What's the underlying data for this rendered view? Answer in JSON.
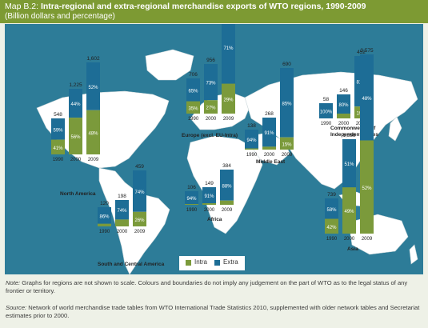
{
  "figure": {
    "map_label": "Map B.2:",
    "title": "Intra-regional and extra-regional merchandise exports of WTO regions, 1990-2009",
    "subtitle": "(Billion dollars and percentage)"
  },
  "legend": {
    "intra": "Intra",
    "extra": "Extra"
  },
  "colors": {
    "header": "#7d9a33",
    "ocean": "#2d7c98",
    "land": "#ffffff",
    "intra": "#7b9a3b",
    "extra": "#1d6d96"
  },
  "notes": {
    "note_label": "Note:",
    "note_text": "Graphs for regions are not shown to scale. Colours and boundaries do not imply any judgement on the part of WTO as to the legal status of any frontier or territory.",
    "source_label": "Source:",
    "source_text": "Network of world merchandise trade tables from WTO International Trade Statistics 2010, supplemented with older network tables and Secretariat estimates prior to 2000."
  },
  "chart_data": {
    "type": "bar",
    "stacked": true,
    "series_names": [
      "Intra",
      "Extra"
    ],
    "unit_total": "Billion dollars",
    "unit_share": "percentage",
    "regions": [
      {
        "name": "North America",
        "years": [
          "1990",
          "2000",
          "2009"
        ],
        "totals": [
          "548",
          "1,225",
          "1,602"
        ],
        "intra_pct": [
          41,
          56,
          48
        ],
        "extra_pct": [
          59,
          44,
          52
        ]
      },
      {
        "name": "South and Central America",
        "years": [
          "1990",
          "2000",
          "2009"
        ],
        "totals": [
          "120",
          "198",
          "459"
        ],
        "intra_pct": [
          14,
          26,
          26
        ],
        "extra_pct": [
          86,
          74,
          74
        ]
      },
      {
        "name": "Europe (excl. EU-Intra)",
        "years": [
          "1990",
          "2000",
          "2009"
        ],
        "totals": [
          "706",
          "956",
          "1,957"
        ],
        "intra_pct": [
          35,
          27,
          29
        ],
        "extra_pct": [
          65,
          73,
          71
        ]
      },
      {
        "name": "Africa",
        "years": [
          "1990",
          "2000",
          "2009"
        ],
        "totals": [
          "106",
          "149",
          "384"
        ],
        "intra_pct": [
          6,
          9,
          12
        ],
        "extra_pct": [
          94,
          91,
          88
        ]
      },
      {
        "name": "Middle East",
        "years": [
          "1990",
          "2000",
          "2009"
        ],
        "totals": [
          "138",
          "268",
          "690"
        ],
        "intra_pct": [
          6,
          9,
          15
        ],
        "extra_pct": [
          94,
          91,
          85
        ]
      },
      {
        "name": "Commonwealth of Independent States",
        "years": [
          "1990",
          "2000",
          "2009"
        ],
        "totals": [
          "58",
          "146",
          "452"
        ],
        "intra_pct": [
          0,
          20,
          19
        ],
        "extra_pct": [
          100,
          80,
          81
        ]
      },
      {
        "name": "Asia",
        "years": [
          "1990",
          "2000",
          "2009"
        ],
        "totals": [
          "739",
          "1,558",
          "3,575"
        ],
        "intra_pct": [
          42,
          49,
          52
        ],
        "extra_pct": [
          58,
          51,
          48
        ]
      }
    ]
  }
}
